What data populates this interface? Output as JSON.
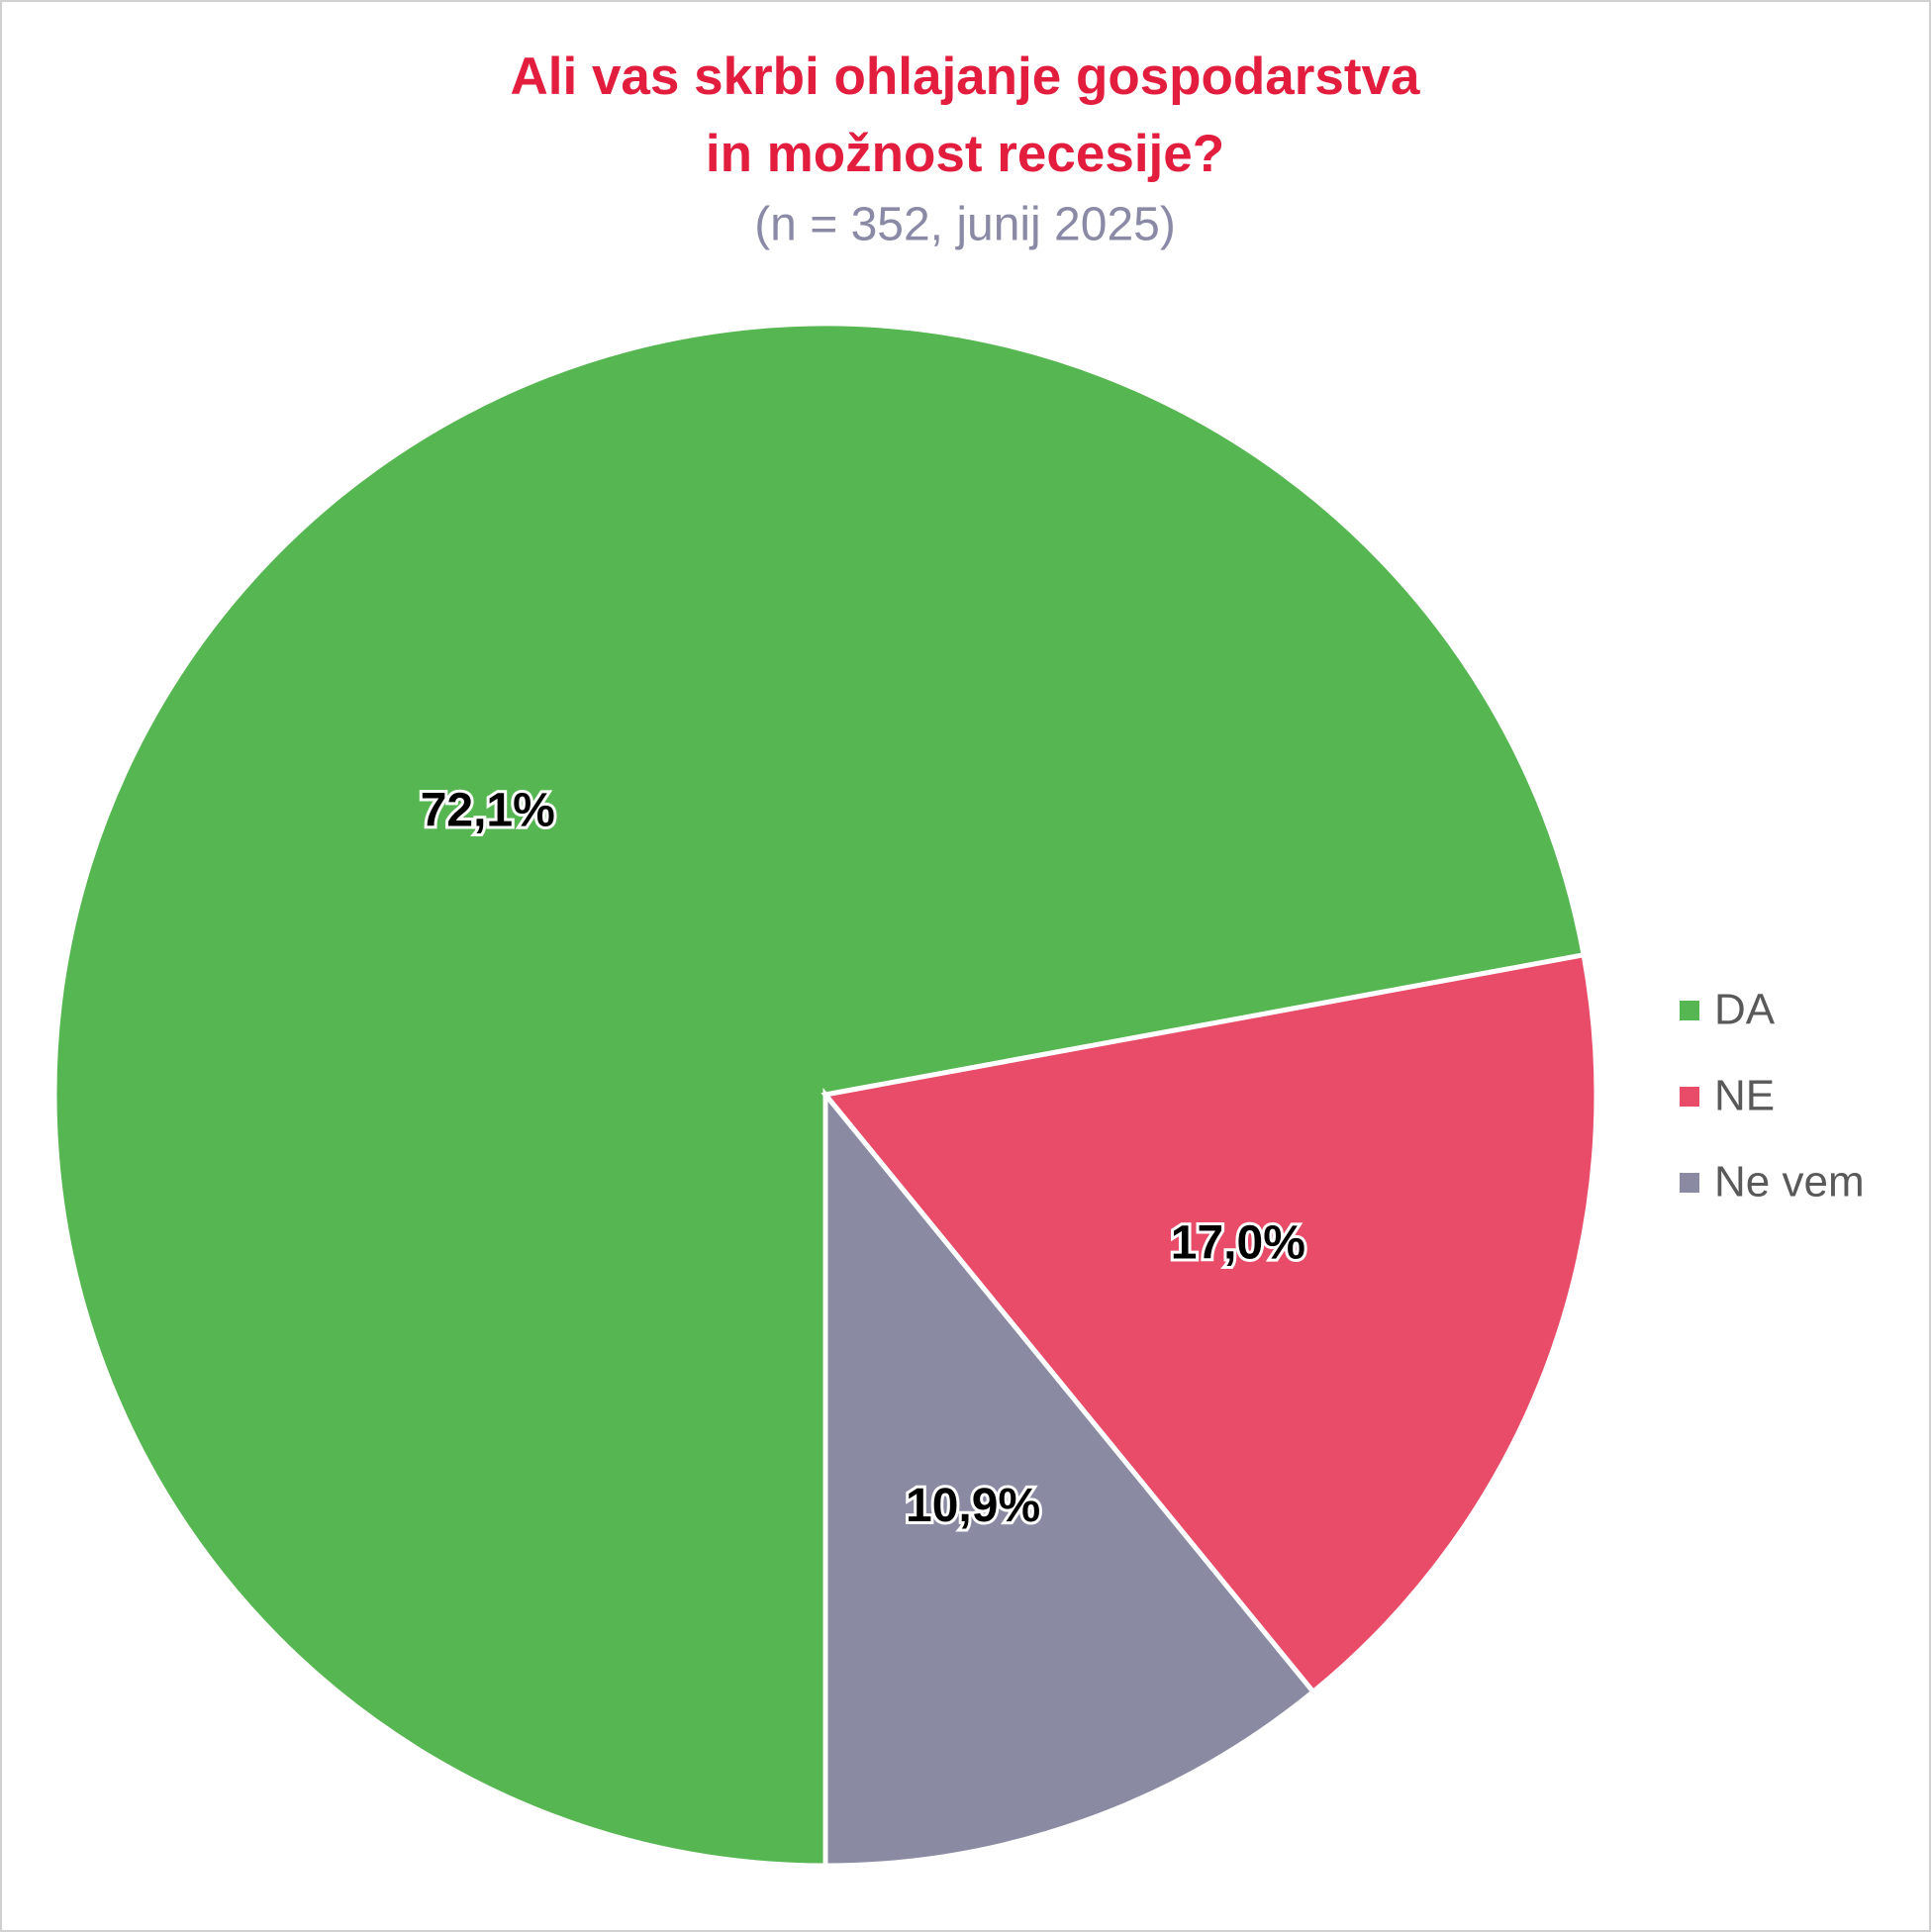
{
  "chart_data": {
    "type": "pie",
    "title": [
      "Ali vas skrbi ohlajanje gospodarstva",
      "in možnost recesije?"
    ],
    "subtitle": "(n = 352, junij 2025)",
    "categories": [
      "DA",
      "NE",
      "Ne vem"
    ],
    "values": [
      72.1,
      17.0,
      10.9
    ],
    "value_labels": [
      "72,1%",
      "17,0%",
      "10,9%"
    ],
    "colors": [
      "#56b651",
      "#e84c68",
      "#8a8aa3"
    ],
    "legend": "right"
  }
}
